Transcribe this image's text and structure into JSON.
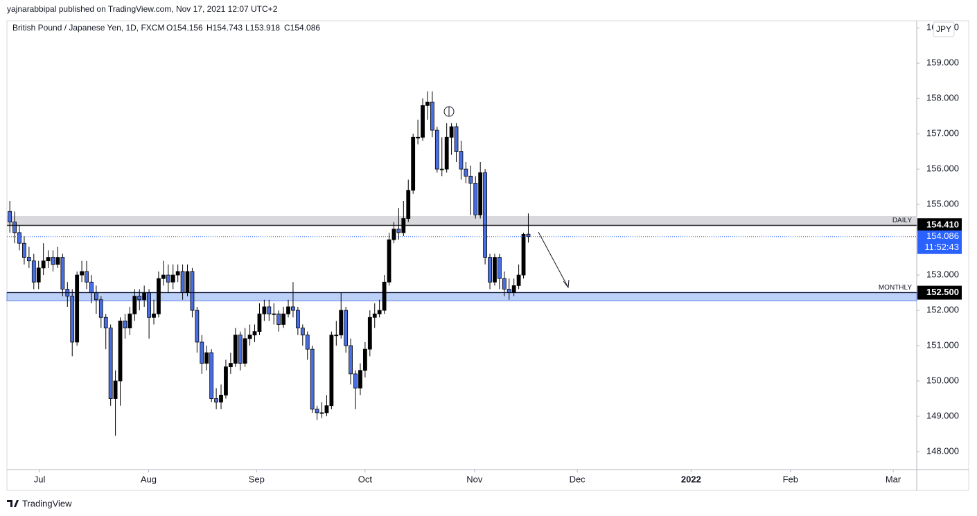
{
  "chart_data": {
    "type": "candlestick",
    "author_line": "yajnarabbipal published on TradingView.com, Nov 17, 2021 12:07 UTC+2",
    "symbol": "British Pound / Japanese Yen, 1D, FXCM",
    "ohlc_labels": [
      "O154.156",
      "H154.743",
      "L153.918",
      "C154.086"
    ],
    "currency": "JPY",
    "brand": "TradingView",
    "up_color": "#000000",
    "down_color": "#4a6ee0",
    "open": [
      154.8,
      154.5,
      154.2,
      153.9,
      153.5,
      153.4,
      152.8,
      153.2,
      153.4,
      153.5,
      153.3,
      153.5,
      152.6,
      152.4,
      151.1,
      153.0,
      153.1,
      152.8,
      152.5,
      152.3,
      151.8,
      151.5,
      149.5,
      150.0,
      151.7,
      151.5,
      151.9,
      152.4,
      152.3,
      152.5,
      151.8,
      151.9,
      152.9,
      153.0,
      152.8,
      153.0,
      153.1,
      152.5,
      153.1,
      152.0,
      151.1,
      150.5,
      150.8,
      149.5,
      149.4,
      149.6,
      150.4,
      150.5,
      151.3,
      150.5,
      151.2,
      151.3,
      151.4,
      151.9,
      152.1,
      151.9,
      151.9,
      151.6,
      151.9,
      152.1,
      152.0,
      151.5,
      151.3,
      150.9,
      149.2,
      149.1,
      149.1,
      149.3,
      151.3,
      151.3,
      152.0,
      151.0,
      150.2,
      149.8,
      150.3,
      150.9,
      151.8,
      151.9,
      152.0,
      152.8,
      154.0,
      154.3,
      154.2,
      154.6,
      155.4,
      156.9,
      156.9,
      157.8,
      157.9,
      157.1,
      156.0,
      156.0,
      156.9,
      157.2,
      156.5,
      156.0,
      155.8,
      155.6,
      154.7,
      155.9,
      153.5,
      152.8,
      153.5,
      152.9,
      152.6,
      152.5,
      152.7,
      153.0,
      154.156
    ],
    "high": [
      155.1,
      154.8,
      154.4,
      154.1,
      153.8,
      153.6,
      153.4,
      153.9,
      153.7,
      153.7,
      153.8,
      153.6,
      152.8,
      152.6,
      153.1,
      153.4,
      153.4,
      153.0,
      152.7,
      152.4,
      151.9,
      151.6,
      150.3,
      151.8,
      151.9,
      152.1,
      152.6,
      152.6,
      152.7,
      152.6,
      152.3,
      153.1,
      153.4,
      153.3,
      153.3,
      153.3,
      153.3,
      153.3,
      153.2,
      152.1,
      151.3,
      151.0,
      150.9,
      149.8,
      149.9,
      150.6,
      150.8,
      151.5,
      151.4,
      151.5,
      151.6,
      151.6,
      152.2,
      152.3,
      152.3,
      152.2,
      152.0,
      152.1,
      152.3,
      152.8,
      152.1,
      151.6,
      151.4,
      151.0,
      149.3,
      149.4,
      149.6,
      151.4,
      151.7,
      152.5,
      152.1,
      151.2,
      150.3,
      150.5,
      151.1,
      152.0,
      152.2,
      152.3,
      153.0,
      154.2,
      154.5,
      154.9,
      155.1,
      155.7,
      157.0,
      157.4,
      158.0,
      158.2,
      158.2,
      157.2,
      156.9,
      157.3,
      157.3,
      157.3,
      156.8,
      156.2,
      156.1,
      155.8,
      156.2,
      156.0,
      153.6,
      153.6,
      153.6,
      153.1,
      152.9,
      152.9,
      153.3,
      154.2,
      154.743
    ],
    "low": [
      154.2,
      153.9,
      153.7,
      153.3,
      153.2,
      152.6,
      152.6,
      153.0,
      153.2,
      153.1,
      153.2,
      152.4,
      152.1,
      150.7,
      151.0,
      152.8,
      152.6,
      152.2,
      151.9,
      151.5,
      150.9,
      149.3,
      148.45,
      149.3,
      151.2,
      151.3,
      151.7,
      152.0,
      152.1,
      151.2,
      151.6,
      151.8,
      152.7,
      152.5,
      152.6,
      152.8,
      152.3,
      152.4,
      151.8,
      150.8,
      150.2,
      150.3,
      149.4,
      149.2,
      149.2,
      149.5,
      150.2,
      150.4,
      150.3,
      150.4,
      151.0,
      151.1,
      151.3,
      151.7,
      151.7,
      151.6,
      151.4,
      151.5,
      151.8,
      151.8,
      151.3,
      151.0,
      150.6,
      149.1,
      148.9,
      148.95,
      149.0,
      149.2,
      151.0,
      151.2,
      150.8,
      149.9,
      149.2,
      149.6,
      150.1,
      150.7,
      151.5,
      151.8,
      151.9,
      152.7,
      153.9,
      154.0,
      154.1,
      154.5,
      155.3,
      156.7,
      156.8,
      157.4,
      156.9,
      155.9,
      155.8,
      155.9,
      156.4,
      156.2,
      155.7,
      155.6,
      154.7,
      154.6,
      154.6,
      153.3,
      152.6,
      152.7,
      152.6,
      152.4,
      152.3,
      152.4,
      152.6,
      152.9,
      153.918
    ],
    "close": [
      154.5,
      154.2,
      153.9,
      153.5,
      153.4,
      152.8,
      153.2,
      153.4,
      153.5,
      153.3,
      153.5,
      152.6,
      152.4,
      151.1,
      153.0,
      153.1,
      152.8,
      152.5,
      152.3,
      151.8,
      151.5,
      149.5,
      150.0,
      151.7,
      151.5,
      151.9,
      152.4,
      152.3,
      152.5,
      151.8,
      151.9,
      152.9,
      153.0,
      152.8,
      153.0,
      153.1,
      152.5,
      153.1,
      152.0,
      151.1,
      150.5,
      150.8,
      149.5,
      149.4,
      149.6,
      150.4,
      150.5,
      151.3,
      150.5,
      151.2,
      151.3,
      151.4,
      151.9,
      152.1,
      151.9,
      151.9,
      151.6,
      151.9,
      152.1,
      152.0,
      151.5,
      151.3,
      150.9,
      149.2,
      149.1,
      149.1,
      149.3,
      151.3,
      151.3,
      152.0,
      151.0,
      150.2,
      149.8,
      150.3,
      150.9,
      151.8,
      151.9,
      152.0,
      152.8,
      154.0,
      154.3,
      154.2,
      154.6,
      155.4,
      156.9,
      156.9,
      157.8,
      157.9,
      157.1,
      156.0,
      156.0,
      156.9,
      157.2,
      156.5,
      156.0,
      155.8,
      155.6,
      154.7,
      155.9,
      153.5,
      152.8,
      153.5,
      152.9,
      152.6,
      152.5,
      152.7,
      153.0,
      154.15,
      154.086
    ],
    "xlim": [
      -0.6,
      188.9
    ],
    "xticks": [
      {
        "value": 6.2,
        "label": "Jul"
      },
      {
        "value": 28.9,
        "label": "Aug"
      },
      {
        "value": 51.4,
        "label": "Sep"
      },
      {
        "value": 74,
        "label": "Oct"
      },
      {
        "value": 96.8,
        "label": "Nov"
      },
      {
        "value": 118.2,
        "label": "Dec"
      },
      {
        "value": 141.9,
        "label": "2022",
        "bold": true
      },
      {
        "value": 162.6,
        "label": "Feb"
      },
      {
        "value": 184,
        "label": "Mar"
      }
    ],
    "ylim": [
      147.49,
      160.2
    ],
    "yticks": [
      {
        "value": 148,
        "label": "148.000"
      },
      {
        "value": 149,
        "label": "149.000"
      },
      {
        "value": 150,
        "label": "150.000"
      },
      {
        "value": 151,
        "label": "151.000"
      },
      {
        "value": 152,
        "label": "152.000"
      },
      {
        "value": 153,
        "label": "153.000"
      },
      {
        "value": 154,
        "label": "154.000"
      },
      {
        "value": 155,
        "label": "155.000"
      },
      {
        "value": 156,
        "label": "156.000"
      },
      {
        "value": 157,
        "label": "157.000"
      },
      {
        "value": 158,
        "label": "158.000"
      },
      {
        "value": 159,
        "label": "159.000"
      },
      {
        "value": 160,
        "label": "160.000"
      }
    ],
    "levels": [
      {
        "name": "DAILY",
        "value": 154.41,
        "value_label": "154.410",
        "zone": [
          154.37,
          154.67
        ],
        "zone_color": "#d9d9dd",
        "line_color": "#000000"
      },
      {
        "name": "MONTHLY",
        "value": 152.5,
        "value_label": "152.500",
        "zone": [
          152.27,
          152.51
        ],
        "zone_color": "#bcd0f8",
        "line_color": "#000000"
      }
    ],
    "last_price": 154.086,
    "countdown": "11:52:43",
    "last_color": "#2962ff"
  }
}
